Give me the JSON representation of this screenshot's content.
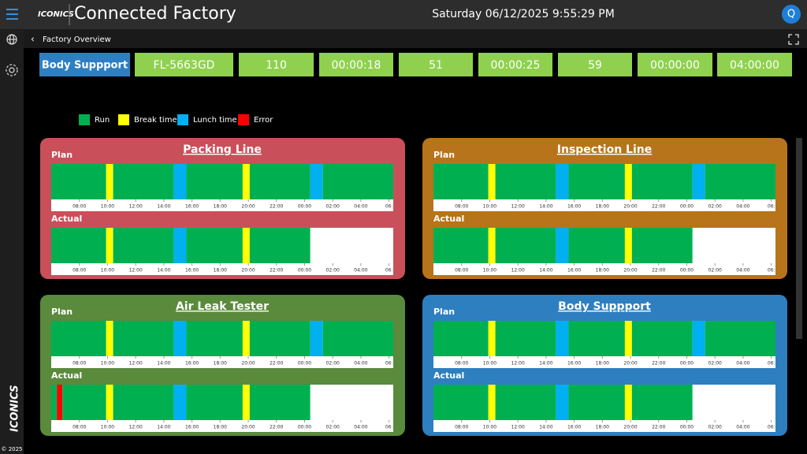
{
  "header": {
    "logo": "ICONICS",
    "title": "Connected Factory",
    "datetime": "Saturday 06/12/2025 9:55:29 PM"
  },
  "sidebar": {
    "logo": "ICONICS",
    "copyright": "© 2025"
  },
  "breadcrumb": "Factory Overview",
  "summary_row": [
    "Body Suppport",
    "FL-5663GD",
    "110",
    "00:00:18",
    "51",
    "00:00:25",
    "59",
    "00:00:00",
    "04:00:00"
  ],
  "legend": [
    {
      "label": "Run",
      "color": "#00b050"
    },
    {
      "label": "Break time",
      "color": "#ffff00"
    },
    {
      "label": "Lunch time",
      "color": "#00b0f0"
    },
    {
      "label": "Error",
      "color": "#ff0000"
    }
  ],
  "time_axis": {
    "xlim": [
      6,
      30.3
    ],
    "ticks": [
      {
        "value": 8,
        "label": "08:00"
      },
      {
        "value": 10,
        "label": "10:00"
      },
      {
        "value": 12,
        "label": "12:00"
      },
      {
        "value": 14,
        "label": "14:00"
      },
      {
        "value": 16,
        "label": "16:00"
      },
      {
        "value": 18,
        "label": "18:00"
      },
      {
        "value": 20,
        "label": "20:00"
      },
      {
        "value": 22,
        "label": "22:00"
      },
      {
        "value": 24,
        "label": "00:00"
      },
      {
        "value": 26,
        "label": "02:00"
      },
      {
        "value": 28,
        "label": "04:00"
      },
      {
        "value": 30,
        "label": "06:"
      }
    ]
  },
  "panels": [
    {
      "title": "Packing Line",
      "color": "#c9505a",
      "plan_label": "Plan",
      "actual_label": "Actual",
      "plan": [
        {
          "status": "Run",
          "start": 6,
          "end": 9.9
        },
        {
          "status": "Break time",
          "start": 9.9,
          "end": 10.4
        },
        {
          "status": "Run",
          "start": 10.4,
          "end": 14.7
        },
        {
          "status": "Lunch time",
          "start": 14.7,
          "end": 15.6
        },
        {
          "status": "Run",
          "start": 15.6,
          "end": 19.6
        },
        {
          "status": "Break time",
          "start": 19.6,
          "end": 20.1
        },
        {
          "status": "Run",
          "start": 20.1,
          "end": 24.4
        },
        {
          "status": "Lunch time",
          "start": 24.4,
          "end": 25.3
        },
        {
          "status": "Run",
          "start": 25.3,
          "end": 30.3
        }
      ],
      "actual": [
        {
          "status": "Run",
          "start": 6,
          "end": 9.9
        },
        {
          "status": "Break time",
          "start": 9.9,
          "end": 10.4
        },
        {
          "status": "Run",
          "start": 10.4,
          "end": 14.7
        },
        {
          "status": "Lunch time",
          "start": 14.7,
          "end": 15.6
        },
        {
          "status": "Run",
          "start": 15.6,
          "end": 19.6
        },
        {
          "status": "Break time",
          "start": 19.6,
          "end": 20.1
        },
        {
          "status": "Run",
          "start": 20.1,
          "end": 24.4
        }
      ]
    },
    {
      "title": "Inspection Line",
      "color": "#b8741a",
      "plan_label": "Plan",
      "actual_label": "Actual",
      "plan": [
        {
          "status": "Run",
          "start": 6,
          "end": 9.9
        },
        {
          "status": "Break time",
          "start": 9.9,
          "end": 10.4
        },
        {
          "status": "Run",
          "start": 10.4,
          "end": 14.7
        },
        {
          "status": "Lunch time",
          "start": 14.7,
          "end": 15.6
        },
        {
          "status": "Run",
          "start": 15.6,
          "end": 19.6
        },
        {
          "status": "Break time",
          "start": 19.6,
          "end": 20.1
        },
        {
          "status": "Run",
          "start": 20.1,
          "end": 24.4
        },
        {
          "status": "Lunch time",
          "start": 24.4,
          "end": 25.3
        },
        {
          "status": "Run",
          "start": 25.3,
          "end": 30.3
        }
      ],
      "actual": [
        {
          "status": "Run",
          "start": 6,
          "end": 9.9
        },
        {
          "status": "Break time",
          "start": 9.9,
          "end": 10.4
        },
        {
          "status": "Run",
          "start": 10.4,
          "end": 14.7
        },
        {
          "status": "Lunch time",
          "start": 14.7,
          "end": 15.6
        },
        {
          "status": "Run",
          "start": 15.6,
          "end": 19.6
        },
        {
          "status": "Break time",
          "start": 19.6,
          "end": 20.1
        },
        {
          "status": "Run",
          "start": 20.1,
          "end": 24.4
        }
      ]
    },
    {
      "title": "Air Leak Tester",
      "color": "#5a8a3c",
      "plan_label": "Plan",
      "actual_label": "Actual",
      "plan": [
        {
          "status": "Run",
          "start": 6,
          "end": 9.9
        },
        {
          "status": "Break time",
          "start": 9.9,
          "end": 10.4
        },
        {
          "status": "Run",
          "start": 10.4,
          "end": 14.7
        },
        {
          "status": "Lunch time",
          "start": 14.7,
          "end": 15.6
        },
        {
          "status": "Run",
          "start": 15.6,
          "end": 19.6
        },
        {
          "status": "Break time",
          "start": 19.6,
          "end": 20.1
        },
        {
          "status": "Run",
          "start": 20.1,
          "end": 24.4
        },
        {
          "status": "Lunch time",
          "start": 24.4,
          "end": 25.3
        },
        {
          "status": "Run",
          "start": 25.3,
          "end": 30.3
        }
      ],
      "actual": [
        {
          "status": "Run",
          "start": 6,
          "end": 6.4
        },
        {
          "status": "Error",
          "start": 6.4,
          "end": 6.8
        },
        {
          "status": "Run",
          "start": 6.8,
          "end": 9.9
        },
        {
          "status": "Break time",
          "start": 9.9,
          "end": 10.4
        },
        {
          "status": "Run",
          "start": 10.4,
          "end": 14.7
        },
        {
          "status": "Lunch time",
          "start": 14.7,
          "end": 15.6
        },
        {
          "status": "Run",
          "start": 15.6,
          "end": 19.6
        },
        {
          "status": "Break time",
          "start": 19.6,
          "end": 20.1
        },
        {
          "status": "Run",
          "start": 20.1,
          "end": 24.4
        }
      ]
    },
    {
      "title": "Body Suppport",
      "color": "#2e7fc0",
      "plan_label": "Plan",
      "actual_label": "Actual",
      "plan": [
        {
          "status": "Run",
          "start": 6,
          "end": 9.9
        },
        {
          "status": "Break time",
          "start": 9.9,
          "end": 10.4
        },
        {
          "status": "Run",
          "start": 10.4,
          "end": 14.7
        },
        {
          "status": "Lunch time",
          "start": 14.7,
          "end": 15.6
        },
        {
          "status": "Run",
          "start": 15.6,
          "end": 19.6
        },
        {
          "status": "Break time",
          "start": 19.6,
          "end": 20.1
        },
        {
          "status": "Run",
          "start": 20.1,
          "end": 24.4
        },
        {
          "status": "Lunch time",
          "start": 24.4,
          "end": 25.3
        },
        {
          "status": "Run",
          "start": 25.3,
          "end": 30.3
        }
      ],
      "actual": [
        {
          "status": "Run",
          "start": 6,
          "end": 9.9
        },
        {
          "status": "Break time",
          "start": 9.9,
          "end": 10.4
        },
        {
          "status": "Run",
          "start": 10.4,
          "end": 14.7
        },
        {
          "status": "Lunch time",
          "start": 14.7,
          "end": 15.6
        },
        {
          "status": "Run",
          "start": 15.6,
          "end": 19.6
        },
        {
          "status": "Break time",
          "start": 19.6,
          "end": 20.1
        },
        {
          "status": "Run",
          "start": 20.1,
          "end": 24.4
        }
      ]
    }
  ]
}
